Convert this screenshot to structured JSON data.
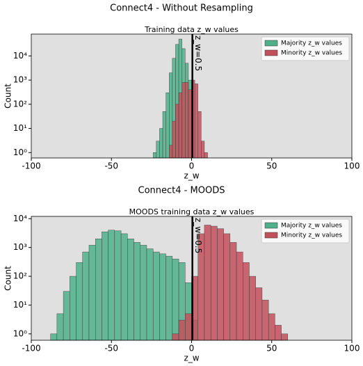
{
  "chart_data": [
    {
      "type": "histogram",
      "title": "Connect4 - Without Resampling",
      "subtitle": "Training data z_w values",
      "x_label": "z_w",
      "y_label": "Count",
      "log_y": true,
      "legend": "upper right",
      "background": "#e0e0e0",
      "xlim": [
        -100,
        100
      ],
      "xticks": [
        -100,
        -50,
        0,
        50,
        100
      ],
      "ylim": [
        0.6,
        80000
      ],
      "yticks": [
        {
          "value": 1,
          "label": "10⁰"
        },
        {
          "value": 10,
          "label": "10¹"
        },
        {
          "value": 100,
          "label": "10²"
        },
        {
          "value": 1000,
          "label": "10³"
        },
        {
          "value": 10000,
          "label": "10⁴"
        }
      ],
      "vline": 0.5,
      "vline_label": "z_w=0.5",
      "bins": [
        -24,
        -22,
        -20,
        -18,
        -16,
        -14,
        -12,
        -10,
        -8,
        -6,
        -4,
        -2,
        0,
        2,
        4,
        6,
        8,
        10
      ],
      "series": [
        {
          "name": "Majority z_w values",
          "color": "#4fb08a",
          "values": [
            1,
            3,
            10,
            50,
            300,
            2000,
            8000,
            30000,
            50000,
            20000,
            5000,
            1000,
            0,
            0,
            0,
            0,
            0
          ]
        },
        {
          "name": "Minority z_w values",
          "color": "#c2505c",
          "values": [
            0,
            0,
            0,
            0,
            0,
            2,
            20,
            100,
            300,
            800,
            800,
            400,
            1000,
            700,
            50,
            3,
            1
          ]
        }
      ]
    },
    {
      "type": "histogram",
      "title": "Connect4 - MOODS",
      "subtitle": "MOODS training data z_w values",
      "x_label": "z_w",
      "y_label": "Count",
      "log_y": true,
      "legend": "upper right",
      "background": "#e0e0e0",
      "xlim": [
        -100,
        100
      ],
      "xticks": [
        -100,
        -50,
        0,
        50,
        100
      ],
      "ylim": [
        0.6,
        12000
      ],
      "yticks": [
        {
          "value": 1,
          "label": "10⁰"
        },
        {
          "value": 10,
          "label": "10¹"
        },
        {
          "value": 100,
          "label": "10²"
        },
        {
          "value": 1000,
          "label": "10³"
        },
        {
          "value": 10000,
          "label": "10⁴"
        }
      ],
      "vline": 0.5,
      "vline_label": "z_w=0.5",
      "bins": [
        -88,
        -84,
        -80,
        -76,
        -72,
        -68,
        -64,
        -60,
        -56,
        -52,
        -48,
        -44,
        -40,
        -36,
        -32,
        -28,
        -24,
        -20,
        -16,
        -12,
        -8,
        -4,
        0,
        4,
        8,
        12,
        16,
        20,
        24,
        28,
        32,
        36,
        40,
        44,
        48,
        52,
        56,
        60
      ],
      "series": [
        {
          "name": "Majority z_w values",
          "color": "#4fb08a",
          "values": [
            1,
            5,
            30,
            100,
            300,
            700,
            1200,
            2000,
            3500,
            4000,
            3800,
            3000,
            2000,
            1500,
            1200,
            900,
            700,
            600,
            500,
            400,
            300,
            60,
            3,
            0,
            0,
            0,
            0,
            0,
            0,
            0,
            0,
            0,
            0,
            0,
            0,
            0,
            0
          ]
        },
        {
          "name": "Minority z_w values",
          "color": "#c2505c",
          "values": [
            0,
            0,
            0,
            0,
            0,
            0,
            0,
            0,
            0,
            0,
            0,
            0,
            0,
            0,
            0,
            0,
            0,
            0,
            0,
            1,
            3,
            5,
            100,
            3000,
            6000,
            5500,
            4500,
            3000,
            1500,
            700,
            300,
            100,
            40,
            15,
            5,
            2,
            1
          ]
        }
      ]
    }
  ]
}
